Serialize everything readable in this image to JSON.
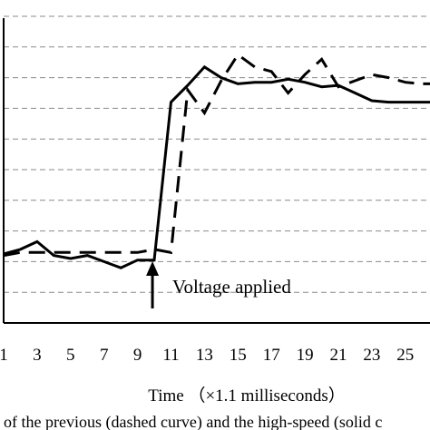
{
  "chart_data": {
    "type": "line",
    "title": "",
    "xlabel": "Time （×1.1 milliseconds）",
    "ylabel": "",
    "x_ticks": [
      1,
      3,
      5,
      7,
      9,
      11,
      13,
      15,
      17,
      19,
      21,
      23,
      25
    ],
    "xlim": [
      1,
      27.3
    ],
    "ylim": [
      0,
      10
    ],
    "y_gridlines": [
      1,
      2,
      3,
      4,
      5,
      6,
      7,
      8,
      9,
      10
    ],
    "grid": "horizontal dashed",
    "legend": "none",
    "series": [
      {
        "style": "solid",
        "color": "#000000",
        "x": [
          1,
          2,
          3,
          4,
          5,
          6,
          7,
          8,
          9,
          10,
          11,
          12,
          13,
          14,
          15,
          16,
          17,
          18,
          19,
          20,
          21,
          22,
          23,
          24,
          25,
          26,
          27
        ],
        "y": [
          2.25,
          2.4,
          2.65,
          2.2,
          2.1,
          2.2,
          2.0,
          1.8,
          2.05,
          2.05,
          7.2,
          7.75,
          8.35,
          8.0,
          7.8,
          7.85,
          7.85,
          7.95,
          7.85,
          7.7,
          7.75,
          7.5,
          7.25,
          7.2,
          7.2,
          7.2,
          7.2
        ]
      },
      {
        "style": "dashed",
        "color": "#000000",
        "x": [
          1,
          2,
          3,
          4,
          5,
          6,
          7,
          8,
          9,
          10,
          11,
          12,
          13,
          14,
          15,
          16,
          17,
          18,
          19,
          20,
          21,
          22,
          23,
          24,
          25,
          26,
          27
        ],
        "y": [
          2.2,
          2.3,
          2.3,
          2.3,
          2.3,
          2.3,
          2.3,
          2.3,
          2.3,
          2.4,
          2.3,
          7.6,
          6.85,
          7.9,
          8.75,
          8.35,
          8.2,
          7.5,
          8.1,
          8.6,
          7.7,
          7.9,
          8.1,
          8.0,
          7.85,
          7.8,
          7.8
        ]
      }
    ],
    "annotations": [
      {
        "text": "Voltage applied",
        "x": 10,
        "arrow": "up"
      }
    ]
  },
  "caption": "of the previous (dashed curve) and the high-speed (solid c"
}
